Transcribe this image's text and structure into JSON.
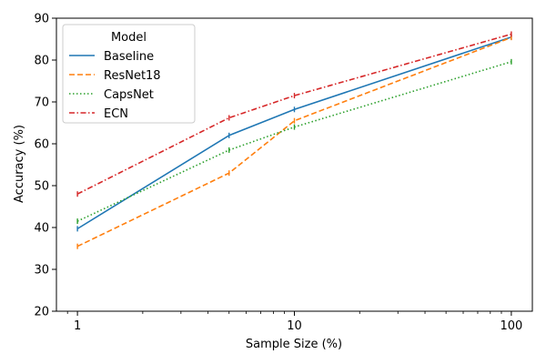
{
  "chart_data": {
    "type": "line",
    "xlabel": "Sample Size (%)",
    "ylabel": "Accuracy (%)",
    "x_scale": "log",
    "xlim": [
      0.8,
      125
    ],
    "ylim": [
      20,
      90
    ],
    "x_ticks": [
      1,
      10,
      100
    ],
    "x_tick_labels": [
      "1",
      "10",
      "100"
    ],
    "y_ticks": [
      20,
      30,
      40,
      50,
      60,
      70,
      80,
      90
    ],
    "y_tick_labels": [
      "20",
      "30",
      "40",
      "50",
      "60",
      "70",
      "80",
      "90"
    ],
    "grid": false,
    "legend": {
      "title": "Model",
      "position": "top-left"
    },
    "x": [
      1,
      5,
      10,
      100
    ],
    "series": [
      {
        "name": "Baseline",
        "values": [
          39.7,
          62.0,
          68.2,
          85.5
        ],
        "color": "#1f77b4",
        "dash": "solid"
      },
      {
        "name": "ResNet18",
        "values": [
          35.5,
          53.0,
          65.5,
          85.4
        ],
        "color": "#ff7f0e",
        "dash": "dashed"
      },
      {
        "name": "CapsNet",
        "values": [
          41.5,
          58.5,
          64.0,
          79.6
        ],
        "color": "#2ca02c",
        "dash": "dotted"
      },
      {
        "name": "ECN",
        "values": [
          48.0,
          66.2,
          71.5,
          86.2
        ],
        "color": "#d62728",
        "dash": "dashdot"
      }
    ]
  }
}
